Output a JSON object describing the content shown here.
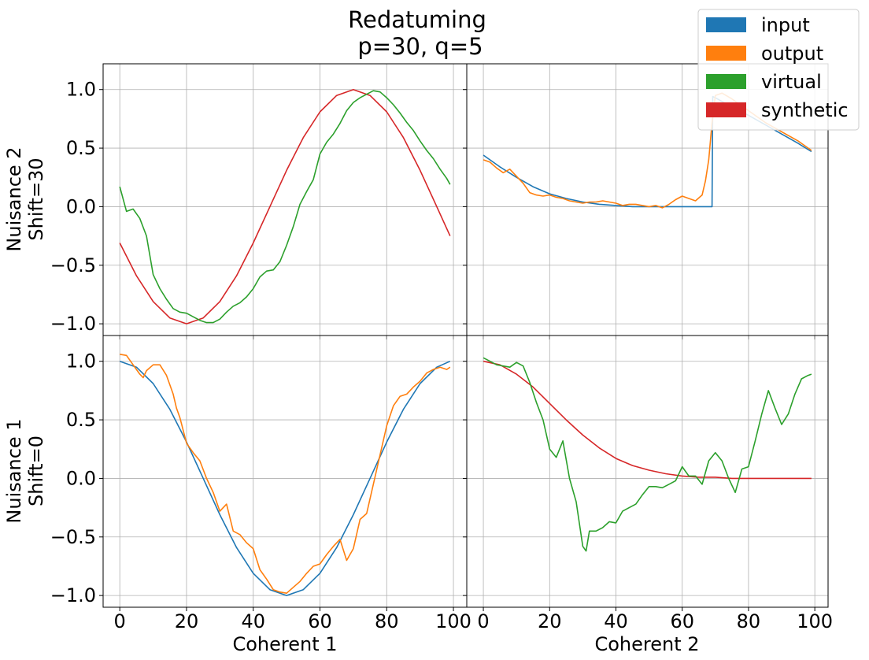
{
  "chart_data": {
    "type": "line",
    "title_line1": "Redatuming",
    "title_line2": "p=30, q=5",
    "legend": {
      "placement": "top-right",
      "entries": [
        {
          "label": "input",
          "color": "#1f77b4"
        },
        {
          "label": "output",
          "color": "#ff7f0e"
        },
        {
          "label": "virtual",
          "color": "#2ca02c"
        },
        {
          "label": "synthetic",
          "color": "#d62728"
        }
      ]
    },
    "xlabels": [
      "Coherent 1",
      "Coherent 2"
    ],
    "row_labels": [
      {
        "line1": "Nuisance 2",
        "line2": "Shift=30"
      },
      {
        "line1": "Nuisance 1",
        "line2": "Shift=0"
      }
    ],
    "xlim": [
      -5,
      104
    ],
    "ylim": [
      -1.1,
      1.22
    ],
    "xticks": [
      0,
      20,
      40,
      60,
      80,
      100
    ],
    "xtick_labels": [
      "0",
      "20",
      "40",
      "60",
      "80",
      "100"
    ],
    "yticks": [
      -1.0,
      -0.5,
      0.0,
      0.5,
      1.0
    ],
    "ytick_labels": [
      "−1.0",
      "−0.5",
      "0.0",
      "0.5",
      "1.0"
    ],
    "grid": true,
    "panels": [
      {
        "id": "top-left",
        "row": 0,
        "col": 0,
        "series": [
          {
            "name": "synthetic",
            "color": "#d62728",
            "x": [
              0,
              5,
              10,
              15,
              20,
              25,
              30,
              35,
              40,
              45,
              50,
              55,
              60,
              65,
              70,
              75,
              80,
              85,
              90,
              95,
              99
            ],
            "y": [
              -0.31,
              -0.59,
              -0.81,
              -0.95,
              -1.0,
              -0.95,
              -0.81,
              -0.59,
              -0.31,
              0.0,
              0.31,
              0.59,
              0.81,
              0.95,
              1.0,
              0.95,
              0.81,
              0.59,
              0.31,
              0.0,
              -0.25
            ]
          },
          {
            "name": "virtual",
            "color": "#2ca02c",
            "x": [
              0,
              2,
              4,
              6,
              8,
              10,
              12,
              14,
              16,
              18,
              20,
              22,
              24,
              26,
              28,
              30,
              32,
              34,
              36,
              38,
              40,
              42,
              44,
              46,
              48,
              50,
              52,
              54,
              56,
              58,
              60,
              62,
              64,
              66,
              68,
              70,
              72,
              74,
              76,
              78,
              80,
              82,
              84,
              86,
              88,
              90,
              92,
              94,
              96,
              98,
              99
            ],
            "y": [
              0.17,
              -0.04,
              -0.02,
              -0.1,
              -0.25,
              -0.58,
              -0.7,
              -0.79,
              -0.87,
              -0.9,
              -0.91,
              -0.94,
              -0.97,
              -0.99,
              -0.99,
              -0.96,
              -0.9,
              -0.85,
              -0.82,
              -0.77,
              -0.7,
              -0.6,
              -0.55,
              -0.54,
              -0.47,
              -0.33,
              -0.17,
              0.02,
              0.13,
              0.23,
              0.45,
              0.55,
              0.62,
              0.71,
              0.82,
              0.89,
              0.93,
              0.96,
              0.99,
              0.98,
              0.93,
              0.87,
              0.8,
              0.72,
              0.65,
              0.56,
              0.48,
              0.41,
              0.32,
              0.24,
              0.19
            ]
          }
        ]
      },
      {
        "id": "top-right",
        "row": 0,
        "col": 1,
        "series": [
          {
            "name": "input",
            "color": "#1f77b4",
            "x": [
              0,
              5,
              10,
              15,
              20,
              25,
              30,
              35,
              40,
              45,
              50,
              55,
              60,
              65,
              69,
              69.2,
              70,
              75,
              80,
              85,
              90,
              95,
              99
            ],
            "y": [
              0.44,
              0.34,
              0.25,
              0.17,
              0.11,
              0.07,
              0.04,
              0.02,
              0.01,
              0.0,
              0.0,
              0.0,
              0.0,
              0.0,
              0.0,
              0.94,
              0.93,
              0.85,
              0.78,
              0.7,
              0.62,
              0.54,
              0.47
            ]
          },
          {
            "name": "output",
            "color": "#ff7f0e",
            "x": [
              0,
              2,
              4,
              6,
              8,
              10,
              12,
              14,
              16,
              18,
              20,
              22,
              24,
              26,
              28,
              30,
              32,
              34,
              36,
              38,
              40,
              42,
              44,
              46,
              48,
              50,
              52,
              54,
              56,
              58,
              60,
              62,
              64,
              66,
              67,
              68,
              69,
              70,
              72,
              75,
              80,
              85,
              90,
              95,
              99
            ],
            "y": [
              0.4,
              0.38,
              0.33,
              0.29,
              0.32,
              0.26,
              0.2,
              0.12,
              0.1,
              0.09,
              0.1,
              0.08,
              0.07,
              0.05,
              0.04,
              0.03,
              0.04,
              0.04,
              0.05,
              0.04,
              0.03,
              0.01,
              0.02,
              0.02,
              0.01,
              0.0,
              0.01,
              -0.01,
              0.02,
              0.06,
              0.09,
              0.07,
              0.05,
              0.1,
              0.22,
              0.4,
              0.72,
              0.95,
              0.97,
              0.92,
              0.82,
              0.72,
              0.64,
              0.56,
              0.48
            ]
          }
        ]
      },
      {
        "id": "bottom-left",
        "row": 1,
        "col": 0,
        "series": [
          {
            "name": "input",
            "color": "#1f77b4",
            "x": [
              0,
              5,
              10,
              15,
              20,
              25,
              30,
              35,
              40,
              45,
              50,
              55,
              60,
              65,
              70,
              75,
              80,
              85,
              90,
              95,
              99
            ],
            "y": [
              1.0,
              0.95,
              0.81,
              0.59,
              0.31,
              0.0,
              -0.31,
              -0.59,
              -0.81,
              -0.95,
              -1.0,
              -0.95,
              -0.81,
              -0.59,
              -0.31,
              0.0,
              0.31,
              0.59,
              0.81,
              0.95,
              1.0
            ]
          },
          {
            "name": "output",
            "color": "#ff7f0e",
            "x": [
              0,
              2,
              4,
              6,
              7,
              8,
              10,
              12,
              14,
              16,
              17,
              18,
              20,
              22,
              24,
              26,
              28,
              30,
              32,
              34,
              36,
              38,
              40,
              42,
              44,
              46,
              48,
              50,
              52,
              54,
              56,
              58,
              60,
              62,
              64,
              66,
              68,
              70,
              72,
              74,
              76,
              78,
              80,
              82,
              84,
              86,
              88,
              90,
              92,
              94,
              96,
              98,
              99
            ],
            "y": [
              1.06,
              1.05,
              0.97,
              0.89,
              0.86,
              0.92,
              0.97,
              0.97,
              0.88,
              0.72,
              0.6,
              0.52,
              0.3,
              0.22,
              0.15,
              0.0,
              -0.12,
              -0.28,
              -0.22,
              -0.45,
              -0.48,
              -0.55,
              -0.6,
              -0.78,
              -0.86,
              -0.95,
              -0.97,
              -0.98,
              -0.93,
              -0.88,
              -0.81,
              -0.75,
              -0.73,
              -0.65,
              -0.58,
              -0.52,
              -0.7,
              -0.6,
              -0.35,
              -0.3,
              -0.05,
              0.2,
              0.45,
              0.62,
              0.7,
              0.72,
              0.78,
              0.83,
              0.9,
              0.93,
              0.95,
              0.93,
              0.95
            ]
          }
        ]
      },
      {
        "id": "bottom-right",
        "row": 1,
        "col": 1,
        "series": [
          {
            "name": "synthetic",
            "color": "#d62728",
            "x": [
              0,
              5,
              10,
              15,
              20,
              25,
              30,
              35,
              40,
              45,
              50,
              55,
              60,
              65,
              70,
              75,
              80,
              85,
              90,
              95,
              99
            ],
            "y": [
              1.0,
              0.97,
              0.89,
              0.78,
              0.64,
              0.5,
              0.37,
              0.26,
              0.17,
              0.11,
              0.07,
              0.04,
              0.02,
              0.01,
              0.01,
              0.0,
              0.0,
              0.0,
              0.0,
              0.0,
              0.0
            ]
          },
          {
            "name": "virtual",
            "color": "#2ca02c",
            "x": [
              0,
              2,
              4,
              6,
              8,
              10,
              12,
              14,
              16,
              18,
              20,
              22,
              24,
              26,
              28,
              30,
              31,
              32,
              34,
              36,
              38,
              40,
              42,
              44,
              46,
              48,
              50,
              52,
              54,
              56,
              58,
              60,
              62,
              64,
              66,
              68,
              70,
              72,
              74,
              76,
              78,
              80,
              82,
              84,
              86,
              88,
              90,
              92,
              94,
              96,
              98,
              99
            ],
            "y": [
              1.03,
              1.0,
              0.97,
              0.96,
              0.95,
              0.99,
              0.96,
              0.82,
              0.65,
              0.5,
              0.25,
              0.18,
              0.32,
              0.0,
              -0.2,
              -0.58,
              -0.62,
              -0.45,
              -0.45,
              -0.42,
              -0.37,
              -0.38,
              -0.28,
              -0.25,
              -0.22,
              -0.14,
              -0.07,
              -0.07,
              -0.08,
              -0.05,
              -0.02,
              0.1,
              0.02,
              0.02,
              -0.05,
              0.15,
              0.22,
              0.15,
              0.0,
              -0.12,
              0.08,
              0.1,
              0.32,
              0.55,
              0.75,
              0.6,
              0.46,
              0.55,
              0.72,
              0.85,
              0.88,
              0.89
            ]
          }
        ]
      }
    ]
  }
}
